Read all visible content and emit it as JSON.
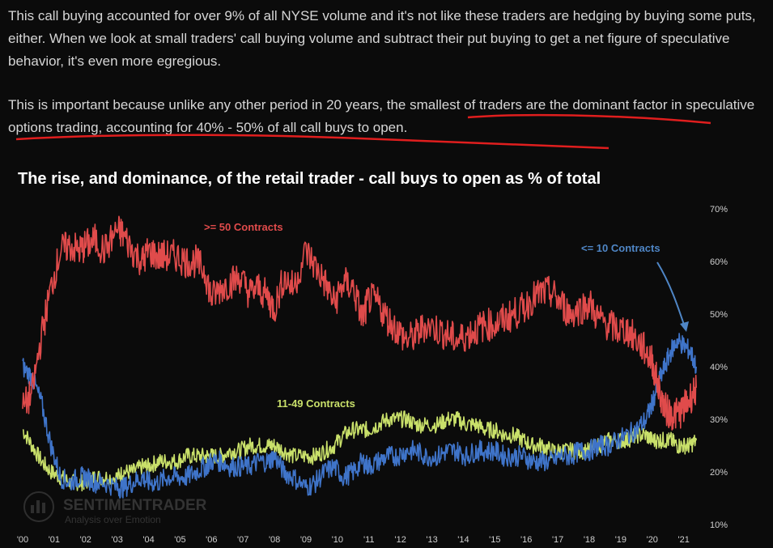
{
  "text": {
    "paragraph1": "This call buying accounted for over 9% of all NYSE volume and it's not like these traders are hedging by buying some puts, either. When we look at small traders' call buying volume and subtract their put buying to get a net figure of speculative behavior, it's even more egregious.",
    "paragraph2": "This is important because unlike any other period in 20 years, the smallest of traders are the dominant factor in speculative options trading, accounting for 40% - 50% of all call buys to open."
  },
  "colors": {
    "background": "#0b0b0b",
    "red_series": "#e04b4b",
    "green_series": "#c9e06a",
    "blue_series": "#3f74c9",
    "underline": "#e01e1e",
    "arrow": "#4f86c6"
  },
  "watermark": {
    "brand": "SENTIMENTRADER",
    "tagline": "Analysis over Emotion"
  },
  "chart_data": {
    "type": "line",
    "title": "The rise, and dominance, of the retail trader - call buys to open as % of total",
    "xlabel": "",
    "ylabel": "",
    "x_ticks": [
      "'00",
      "'01",
      "'02",
      "'03",
      "'04",
      "'05",
      "'06",
      "'07",
      "'08",
      "'09",
      "'10",
      "'11",
      "'12",
      "'13",
      "'14",
      "'15",
      "'16",
      "'17",
      "'18",
      "'19",
      "'20",
      "'21"
    ],
    "y_ticks": [
      "70%",
      "60%",
      "50%",
      "40%",
      "30%",
      "20%",
      "10%"
    ],
    "ylim": [
      10,
      70
    ],
    "xlim": [
      2000,
      2021.6
    ],
    "grid": false,
    "legend": "inline labels",
    "annotation": "arrow from '<= 10 Contracts' label to blue series peak in 2021",
    "series": [
      {
        "name": ">= 50 Contracts",
        "color": "#e04b4b",
        "x": [
          2000.0,
          2000.3,
          2000.6,
          2000.9,
          2001.2,
          2001.5,
          2001.8,
          2002.0,
          2002.3,
          2002.6,
          2003.0,
          2003.2,
          2003.5,
          2003.8,
          2004.0,
          2004.3,
          2004.6,
          2004.9,
          2005.2,
          2005.5,
          2005.8,
          2006.0,
          2006.3,
          2006.6,
          2006.9,
          2007.2,
          2007.5,
          2007.8,
          2008.0,
          2008.3,
          2008.6,
          2009.0,
          2009.3,
          2009.6,
          2009.9,
          2010.2,
          2010.5,
          2010.8,
          2011.0,
          2011.3,
          2011.6,
          2011.9,
          2012.2,
          2012.5,
          2012.8,
          2013.2,
          2013.5,
          2013.8,
          2014.1,
          2014.4,
          2014.7,
          2015.0,
          2015.3,
          2015.6,
          2015.9,
          2016.2,
          2016.5,
          2016.8,
          2017.1,
          2017.4,
          2017.7,
          2018.0,
          2018.3,
          2018.6,
          2018.9,
          2019.2,
          2019.5,
          2019.8,
          2020.0,
          2020.2,
          2020.4,
          2020.6,
          2020.8,
          2021.0,
          2021.2,
          2021.4
        ],
        "values": [
          32,
          35,
          46,
          55,
          62,
          63,
          62,
          63,
          64,
          62,
          66,
          65,
          62,
          60,
          62,
          61,
          61,
          61,
          60,
          60,
          58,
          53,
          55,
          56,
          57,
          54,
          55,
          53,
          51,
          57,
          55,
          62,
          59,
          56,
          52,
          56,
          55,
          49,
          53,
          52,
          49,
          47,
          45,
          46,
          48,
          47,
          46,
          45,
          46,
          47,
          48,
          48,
          49,
          50,
          51,
          53,
          54,
          54,
          52,
          50,
          51,
          52,
          49,
          48,
          47,
          47,
          45,
          43,
          41,
          36,
          32,
          31,
          31,
          32,
          34,
          36
        ]
      },
      {
        "name": "11-49 Contracts",
        "color": "#c9e06a",
        "x": [
          2000.0,
          2000.3,
          2000.6,
          2000.9,
          2001.2,
          2001.5,
          2001.8,
          2002.0,
          2002.3,
          2002.6,
          2003.0,
          2003.2,
          2003.5,
          2003.8,
          2004.0,
          2004.3,
          2004.6,
          2004.9,
          2005.2,
          2005.5,
          2005.8,
          2006.0,
          2006.3,
          2006.6,
          2006.9,
          2007.2,
          2007.5,
          2007.8,
          2008.0,
          2008.3,
          2008.6,
          2009.0,
          2009.3,
          2009.6,
          2009.9,
          2010.2,
          2010.5,
          2010.8,
          2011.0,
          2011.3,
          2011.6,
          2011.9,
          2012.2,
          2012.5,
          2012.8,
          2013.2,
          2013.5,
          2013.8,
          2014.1,
          2014.4,
          2014.7,
          2015.0,
          2015.3,
          2015.6,
          2015.9,
          2016.2,
          2016.5,
          2016.8,
          2017.1,
          2017.4,
          2017.7,
          2018.0,
          2018.3,
          2018.6,
          2018.9,
          2019.2,
          2019.5,
          2019.8,
          2020.0,
          2020.2,
          2020.4,
          2020.6,
          2020.8,
          2021.0,
          2021.2,
          2021.4
        ],
        "values": [
          28,
          25,
          22,
          20,
          19,
          18,
          18,
          18,
          19,
          19,
          19,
          20,
          20,
          21,
          21,
          22,
          22,
          22,
          23,
          23,
          23,
          23,
          23,
          24,
          24,
          25,
          25,
          25,
          25,
          24,
          23,
          23,
          23,
          24,
          25,
          27,
          28,
          28,
          28,
          29,
          30,
          30,
          30,
          29,
          29,
          29,
          30,
          30,
          29,
          29,
          28,
          28,
          27,
          27,
          26,
          25,
          25,
          24,
          24,
          24,
          24,
          24,
          25,
          26,
          26,
          26,
          27,
          27,
          26,
          26,
          26,
          26,
          25,
          25,
          25,
          26
        ]
      },
      {
        "name": "<= 10 Contracts",
        "color": "#3f74c9",
        "x": [
          2000.0,
          2000.3,
          2000.6,
          2000.9,
          2001.2,
          2001.5,
          2001.8,
          2002.0,
          2002.3,
          2002.6,
          2003.0,
          2003.2,
          2003.5,
          2003.8,
          2004.0,
          2004.3,
          2004.6,
          2004.9,
          2005.2,
          2005.5,
          2005.8,
          2006.0,
          2006.3,
          2006.6,
          2006.9,
          2007.2,
          2007.5,
          2007.8,
          2008.0,
          2008.3,
          2008.6,
          2009.0,
          2009.3,
          2009.6,
          2009.9,
          2010.2,
          2010.5,
          2010.8,
          2011.0,
          2011.3,
          2011.6,
          2011.9,
          2012.2,
          2012.5,
          2012.8,
          2013.2,
          2013.5,
          2013.8,
          2014.1,
          2014.4,
          2014.7,
          2015.0,
          2015.3,
          2015.6,
          2015.9,
          2016.2,
          2016.5,
          2016.8,
          2017.1,
          2017.4,
          2017.7,
          2018.0,
          2018.3,
          2018.6,
          2018.9,
          2019.2,
          2019.5,
          2019.8,
          2020.0,
          2020.2,
          2020.4,
          2020.6,
          2020.8,
          2021.0,
          2021.2,
          2021.4
        ],
        "values": [
          40,
          38,
          33,
          25,
          19,
          18,
          19,
          19,
          18,
          18,
          17,
          17,
          18,
          19,
          18,
          18,
          19,
          19,
          19,
          20,
          21,
          22,
          22,
          21,
          21,
          21,
          22,
          22,
          23,
          20,
          19,
          17,
          18,
          20,
          21,
          19,
          20,
          22,
          21,
          22,
          23,
          23,
          24,
          24,
          23,
          23,
          24,
          24,
          23,
          24,
          24,
          24,
          23,
          23,
          23,
          22,
          22,
          22,
          23,
          23,
          24,
          24,
          25,
          25,
          26,
          27,
          28,
          30,
          33,
          37,
          40,
          43,
          45,
          44,
          43,
          40
        ]
      }
    ],
    "annotations": [
      {
        "text": ">= 50 Contracts"
      },
      {
        "text": "11-49 Contracts"
      },
      {
        "text": "<= 10 Contracts"
      }
    ]
  }
}
